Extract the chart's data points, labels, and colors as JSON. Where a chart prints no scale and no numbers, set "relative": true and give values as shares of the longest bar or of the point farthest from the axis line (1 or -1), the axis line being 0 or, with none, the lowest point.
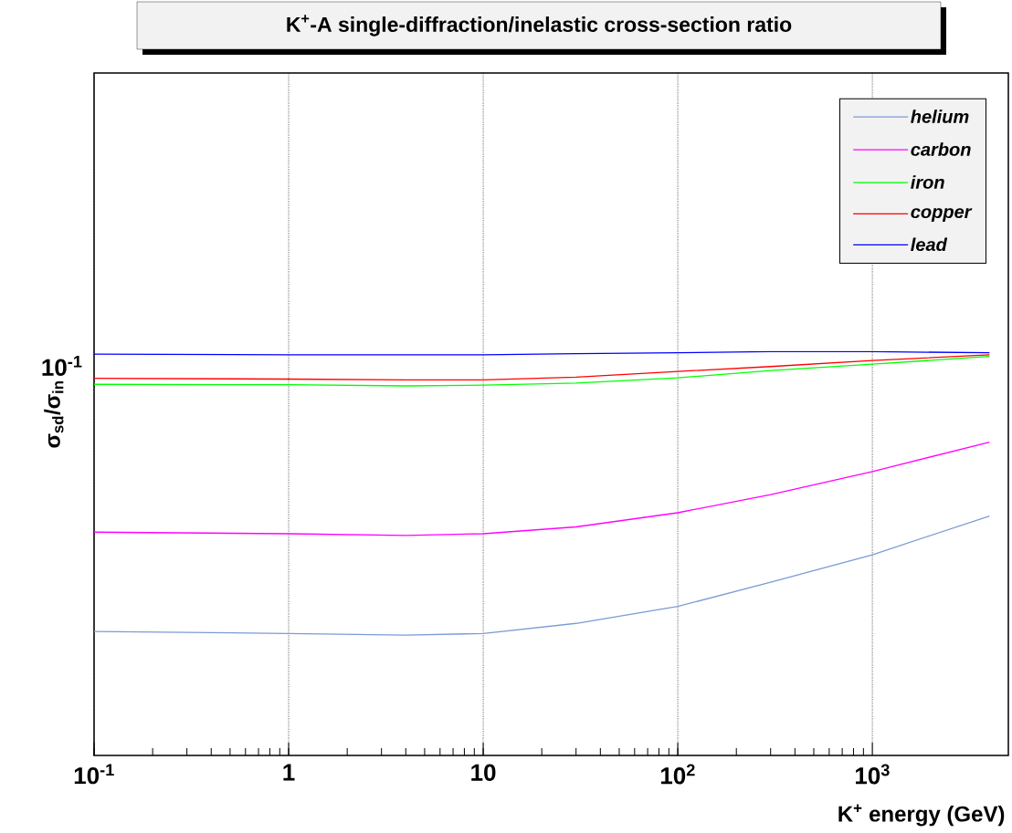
{
  "chart_data": {
    "type": "line",
    "title": "K$^{+}$-A single-diffraction/inelastic cross-section ratio",
    "xlabel": "K$^{+}$ energy (GeV)",
    "ylabel": "σ$_{sd}$/σ$_{in}$",
    "x": [
      0.1,
      1,
      4,
      10,
      30,
      100,
      300,
      1000,
      4000
    ],
    "relative": true,
    "series": [
      {
        "name": "helium",
        "color": "#7b9bd6",
        "values": [
          0.307,
          0.302,
          0.298,
          0.302,
          0.327,
          0.369,
          0.429,
          0.497,
          0.593
        ]
      },
      {
        "name": "carbon",
        "color": "#ff00ff",
        "values": [
          0.553,
          0.549,
          0.545,
          0.549,
          0.566,
          0.601,
          0.646,
          0.703,
          0.776
        ]
      },
      {
        "name": "iron",
        "color": "#00ff00",
        "values": [
          0.919,
          0.918,
          0.915,
          0.917,
          0.922,
          0.935,
          0.953,
          0.969,
          0.988
        ]
      },
      {
        "name": "copper",
        "color": "#ff0000",
        "values": [
          0.934,
          0.932,
          0.93,
          0.93,
          0.937,
          0.951,
          0.963,
          0.978,
          0.992
        ]
      },
      {
        "name": "lead",
        "color": "#0000ff",
        "values": [
          0.994,
          0.992,
          0.992,
          0.992,
          0.995,
          0.997,
          1,
          1,
          0.997
        ]
      }
    ],
    "annotations": [
      "10$^{-1}$"
    ],
    "log": "x",
    "xlim": [
      0.1,
      5000
    ],
    "xticks": [
      {
        "value": 0.1,
        "label": "10$^{-1}$"
      },
      1,
      10,
      {
        "value": 100,
        "label": "10$^{2}$"
      },
      {
        "value": 1000,
        "label": "10$^{3}$"
      }
    ],
    "grid": "x",
    "legend": "top right",
    "marker": "none",
    "line_style": "solid"
  }
}
